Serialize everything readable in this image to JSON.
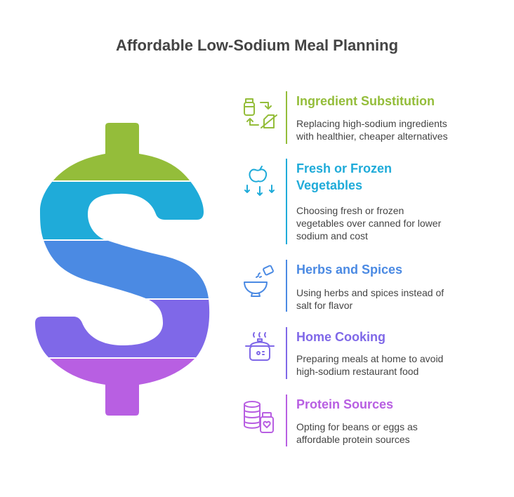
{
  "title": "Affordable Low-Sodium Meal Planning",
  "colors": {
    "green": "#94BD3A",
    "cyan": "#1FABD9",
    "blue": "#4B8AE3",
    "purple": "#7F68E8",
    "magenta": "#B85FE2"
  },
  "items": [
    {
      "title": "Ingredient Substitution",
      "desc_lines": [
        "Replacing high-sodium ingredients",
        "with healthier, cheaper alternatives"
      ],
      "icon": "ingredient-swap-icon",
      "color": "#94BD3A"
    },
    {
      "title_lines": [
        "Fresh or Frozen",
        "Vegetables"
      ],
      "desc_lines": [
        "Choosing fresh or frozen",
        "vegetables over canned for lower",
        "sodium and cost"
      ],
      "icon": "apple-falling-icon",
      "color": "#1FABD9"
    },
    {
      "title": "Herbs and Spices",
      "desc_lines": [
        "Using herbs and spices instead of",
        "salt for flavor"
      ],
      "icon": "bowl-seasoning-icon",
      "color": "#4B8AE3"
    },
    {
      "title": "Home Cooking",
      "desc_lines": [
        "Preparing meals at home to avoid",
        "high-sodium restaurant food"
      ],
      "icon": "cooking-pot-icon",
      "color": "#7F68E8"
    },
    {
      "title": "Protein Sources",
      "desc_lines": [
        "Opting for beans or eggs as",
        "affordable protein sources"
      ],
      "icon": "protein-jar-icon",
      "color": "#B85FE2"
    }
  ]
}
